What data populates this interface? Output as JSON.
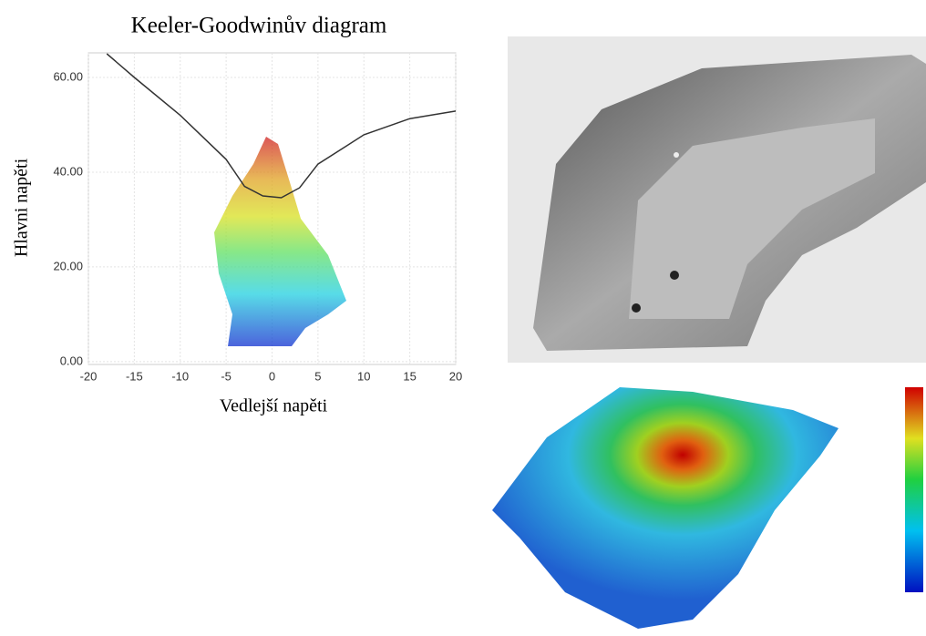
{
  "chart_data": {
    "type": "line",
    "title": "Keeler-Goodwinův diagram",
    "x_label": "Vedlejší napěti",
    "y_label": "Hlavni napěti",
    "x": [
      -18,
      -15,
      -10,
      -5,
      -3,
      -1,
      1,
      3,
      5,
      10,
      15,
      20
    ],
    "values": [
      65,
      60,
      52,
      42.7,
      37,
      35,
      34.6,
      36.7,
      41.7,
      47.9,
      51.3,
      52.9
    ],
    "color": "#333333",
    "xlim": [
      -20,
      20
    ],
    "xticks": [
      -20,
      -15,
      -10,
      -5,
      0,
      5,
      10,
      15,
      20
    ],
    "ylim": [
      -0.6,
      65.2
    ],
    "yticks": [
      {
        "value": 0,
        "label": "0.00"
      },
      {
        "value": 20,
        "label": "20.00"
      },
      {
        "value": 40,
        "label": "40.00"
      },
      {
        "value": 60,
        "label": "60.00"
      }
    ],
    "grid": true
  }
}
